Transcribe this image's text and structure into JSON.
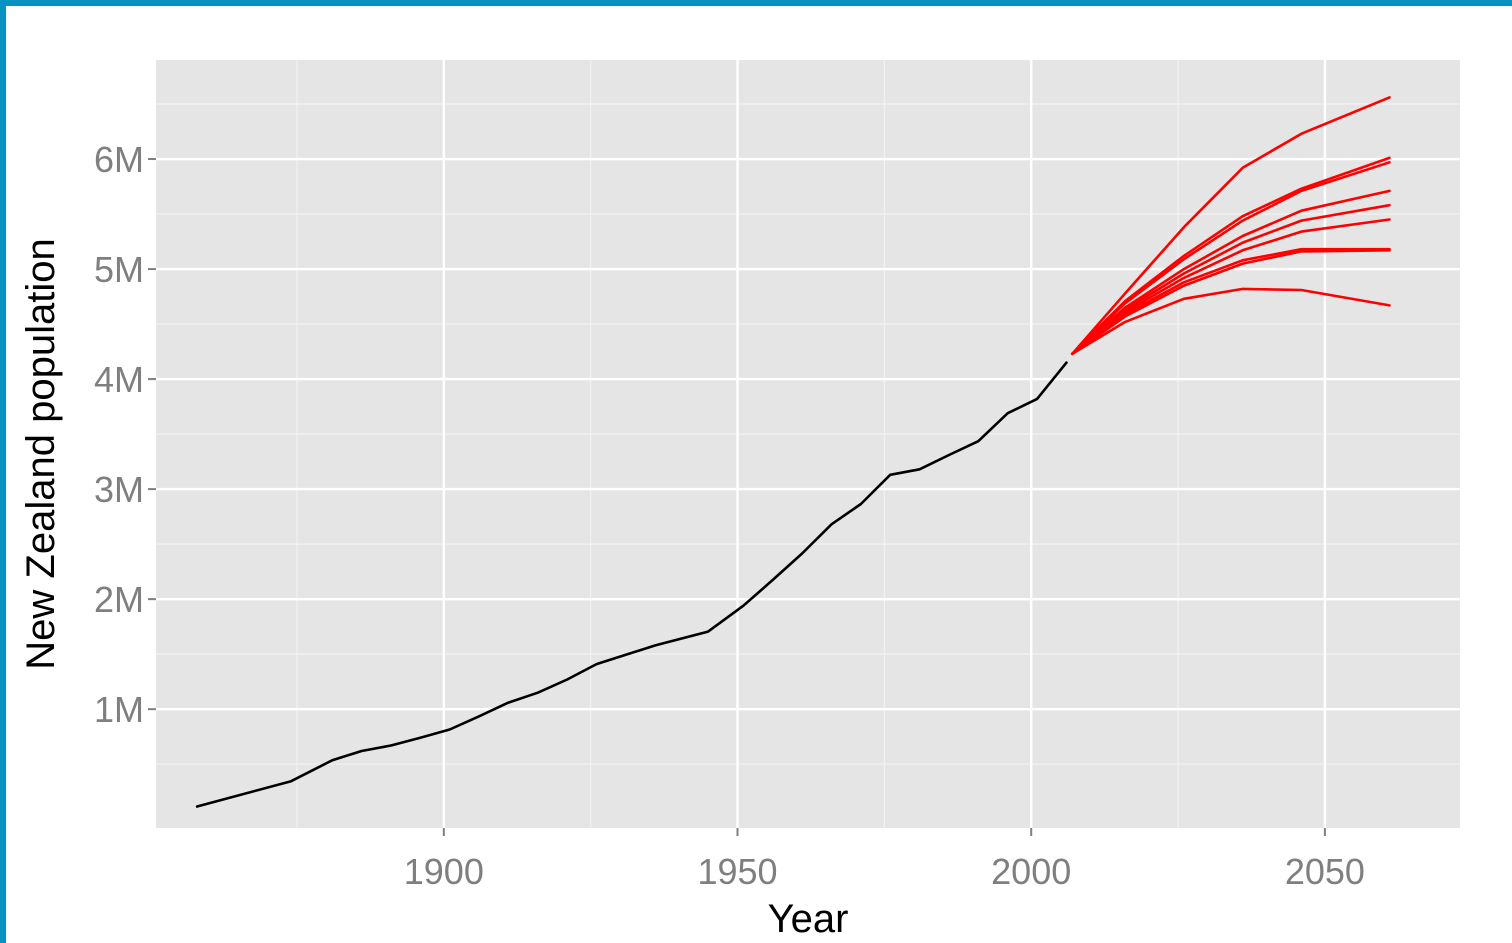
{
  "chart_data": {
    "type": "line",
    "title": "",
    "xlabel": "Year",
    "ylabel": "New Zealand population",
    "xlim": [
      1851,
      2073
    ],
    "ylim": [
      -80000,
      6900000
    ],
    "x_ticks": [
      1900,
      1950,
      2000,
      2050
    ],
    "x_tick_labels": [
      "1900",
      "1950",
      "2000",
      "2050"
    ],
    "y_ticks": [
      1000000,
      2000000,
      3000000,
      4000000,
      5000000,
      6000000
    ],
    "y_tick_labels": [
      "1M",
      "2M",
      "3M",
      "4M",
      "5M",
      "6M"
    ],
    "grid": true,
    "legend": "none",
    "series": [
      {
        "color": "#000000",
        "x": [
          1858,
          1874,
          1881,
          1886,
          1891,
          1896,
          1901,
          1906,
          1911,
          1916,
          1921,
          1926,
          1936,
          1945,
          1951,
          1956,
          1961,
          1966,
          1971,
          1976,
          1981,
          1986,
          1991,
          1996,
          2001,
          2006
        ],
        "y": [
          115000,
          345000,
          535000,
          620000,
          670000,
          740000,
          815000,
          935000,
          1060000,
          1150000,
          1270000,
          1410000,
          1580000,
          1705000,
          1940000,
          2175000,
          2415000,
          2680000,
          2865000,
          3130000,
          3180000,
          3310000,
          3435000,
          3690000,
          3820000,
          4150000
        ]
      },
      {
        "color": "#ff0000",
        "x": [
          2007,
          2016,
          2026,
          2036,
          2046,
          2061
        ],
        "y": [
          4230000,
          4780000,
          5380000,
          5920000,
          6230000,
          6560000
        ]
      },
      {
        "color": "#ff0000",
        "x": [
          2007,
          2016,
          2026,
          2036,
          2046,
          2061
        ],
        "y": [
          4230000,
          4710000,
          5120000,
          5480000,
          5730000,
          6010000
        ]
      },
      {
        "color": "#ff0000",
        "x": [
          2007,
          2016,
          2026,
          2036,
          2046,
          2061
        ],
        "y": [
          4230000,
          4690000,
          5090000,
          5440000,
          5710000,
          5970000
        ]
      },
      {
        "color": "#ff0000",
        "x": [
          2007,
          2016,
          2026,
          2036,
          2046,
          2061
        ],
        "y": [
          4230000,
          4650000,
          5000000,
          5300000,
          5530000,
          5710000
        ]
      },
      {
        "color": "#ff0000",
        "x": [
          2007,
          2016,
          2026,
          2036,
          2046,
          2061
        ],
        "y": [
          4230000,
          4630000,
          4960000,
          5240000,
          5440000,
          5580000
        ]
      },
      {
        "color": "#ff0000",
        "x": [
          2007,
          2016,
          2026,
          2036,
          2046,
          2061
        ],
        "y": [
          4230000,
          4610000,
          4920000,
          5170000,
          5340000,
          5450000
        ]
      },
      {
        "color": "#ff0000",
        "x": [
          2007,
          2016,
          2026,
          2036,
          2046,
          2061
        ],
        "y": [
          4230000,
          4590000,
          4880000,
          5080000,
          5180000,
          5180000
        ]
      },
      {
        "color": "#ff0000",
        "x": [
          2007,
          2016,
          2026,
          2036,
          2046,
          2061
        ],
        "y": [
          4230000,
          4570000,
          4850000,
          5050000,
          5160000,
          5170000
        ]
      },
      {
        "color": "#ff0000",
        "x": [
          2007,
          2016,
          2026,
          2036,
          2046,
          2061
        ],
        "y": [
          4230000,
          4520000,
          4730000,
          4820000,
          4810000,
          4670000
        ]
      }
    ]
  }
}
